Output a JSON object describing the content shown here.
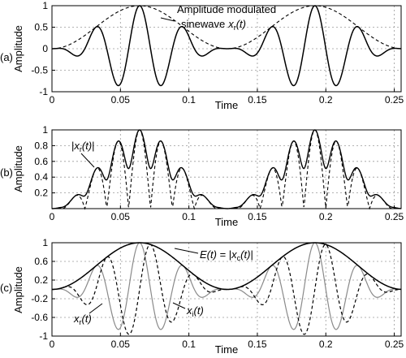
{
  "chart_data": [
    {
      "type": "line",
      "panel_label": "(a)",
      "xlabel": "Time",
      "ylabel": "Amplitude",
      "xlim": [
        0,
        0.255
      ],
      "ylim": [
        -1,
        1
      ],
      "xticks": [
        0,
        0.05,
        0.1,
        0.15,
        0.2,
        0.25
      ],
      "xtick_labels": [
        "0",
        "0.05",
        "0.1",
        "0.15",
        "0.2",
        "0.25"
      ],
      "yticks": [
        -1,
        -0.5,
        0,
        0.5,
        1
      ],
      "ytick_labels": [
        "-1",
        "-0.5",
        "0",
        "0.5",
        "1"
      ],
      "grid": true,
      "signal": {
        "envelope_period": 0.128,
        "envelope_peaks": [
          0.064,
          0.192
        ],
        "carrier_period": 0.032
      },
      "series": [
        {
          "key": "xr",
          "values_desc": "envelope x carrier",
          "points": [
            [
              0,
              0
            ],
            [
              0.016,
              -0.15
            ],
            [
              0.032,
              0.55
            ],
            [
              0.048,
              -0.92
            ],
            [
              0.064,
              1.0
            ],
            [
              0.08,
              -0.92
            ],
            [
              0.096,
              0.55
            ],
            [
              0.112,
              -0.15
            ],
            [
              0.128,
              0
            ],
            [
              0.144,
              -0.15
            ],
            [
              0.16,
              0.55
            ],
            [
              0.176,
              -0.92
            ],
            [
              0.192,
              1.0
            ],
            [
              0.208,
              -0.92
            ],
            [
              0.224,
              0.55
            ],
            [
              0.24,
              -0.15
            ],
            [
              0.255,
              0.01
            ]
          ]
        },
        {
          "key": "env",
          "points": [
            [
              0,
              0
            ],
            [
              0.032,
              0.5
            ],
            [
              0.064,
              1.0
            ],
            [
              0.096,
              0.5
            ],
            [
              0.128,
              0
            ],
            [
              0.16,
              0.5
            ],
            [
              0.192,
              1.0
            ],
            [
              0.224,
              0.5
            ],
            [
              0.255,
              0.01
            ]
          ]
        }
      ],
      "annotations": [
        {
          "line1": "Amplitude modulated",
          "line2_prefix": "sinewave",
          "symbol": "x",
          "subscript": "r",
          "arg": "(t)"
        }
      ]
    },
    {
      "type": "line",
      "panel_label": "(b)",
      "xlabel": "Time",
      "ylabel": "Amplitude",
      "xlim": [
        0,
        0.255
      ],
      "ylim": [
        0,
        1
      ],
      "xticks": [
        0,
        0.05,
        0.1,
        0.15,
        0.2,
        0.25
      ],
      "xtick_labels": [
        "0",
        "0.05",
        "0.1",
        "0.15",
        "0.2",
        "0.25"
      ],
      "yticks": [
        0.2,
        0.4,
        0.6,
        0.8,
        1
      ],
      "ytick_labels": [
        "0.2",
        "0.4",
        "0.6",
        "0.8",
        "1"
      ],
      "grid": true,
      "series": [
        {
          "key": "abs_xr",
          "points": [
            [
              0,
              0
            ],
            [
              0.016,
              0.15
            ],
            [
              0.032,
              0.55
            ],
            [
              0.048,
              0.92
            ],
            [
              0.064,
              1.0
            ],
            [
              0.08,
              0.92
            ],
            [
              0.096,
              0.55
            ],
            [
              0.112,
              0.15
            ],
            [
              0.128,
              0
            ],
            [
              0.144,
              0.15
            ],
            [
              0.16,
              0.55
            ],
            [
              0.176,
              0.92
            ],
            [
              0.192,
              1.0
            ],
            [
              0.208,
              0.92
            ],
            [
              0.224,
              0.55
            ],
            [
              0.24,
              0.15
            ],
            [
              0.255,
              0.01
            ]
          ]
        },
        {
          "key": "hilbert_mag",
          "points": [
            [
              0,
              0
            ],
            [
              0.032,
              0.6
            ],
            [
              0.048,
              0.9
            ],
            [
              0.064,
              1.0
            ],
            [
              0.08,
              0.86
            ],
            [
              0.096,
              0.55
            ],
            [
              0.128,
              0
            ],
            [
              0.16,
              0.6
            ],
            [
              0.176,
              0.9
            ],
            [
              0.192,
              1.0
            ],
            [
              0.208,
              0.86
            ],
            [
              0.224,
              0.55
            ],
            [
              0.255,
              0.01
            ]
          ]
        }
      ],
      "annotations": [
        {
          "symbol": "x",
          "subscript": "r",
          "arg": "(t)",
          "prefix": "|",
          "suffix": "|"
        }
      ]
    },
    {
      "type": "line",
      "panel_label": "(c)",
      "xlabel": "Time",
      "ylabel": "Amplitude",
      "xlim": [
        0,
        0.255
      ],
      "ylim": [
        -1,
        1
      ],
      "xticks": [
        0,
        0.05,
        0.1,
        0.15,
        0.2,
        0.25
      ],
      "xtick_labels": [
        "0",
        "0.05",
        "0.1",
        "0.15",
        "0.2",
        "0.25"
      ],
      "yticks": [
        -1,
        -0.6,
        -0.2,
        0.2,
        0.6,
        1
      ],
      "ytick_labels": [
        "-1",
        "-0.6",
        "-0.2",
        "0.2",
        "0.6",
        "1"
      ],
      "grid": true,
      "series": [
        {
          "key": "envelope",
          "points": [
            [
              0,
              0
            ],
            [
              0.032,
              0.5
            ],
            [
              0.064,
              1.0
            ],
            [
              0.096,
              0.5
            ],
            [
              0.128,
              0
            ],
            [
              0.16,
              0.5
            ],
            [
              0.192,
              1.0
            ],
            [
              0.224,
              0.5
            ],
            [
              0.255,
              0.01
            ]
          ]
        },
        {
          "key": "xr_gray",
          "points": [
            [
              0,
              0
            ],
            [
              0.016,
              -0.15
            ],
            [
              0.032,
              0.55
            ],
            [
              0.048,
              -0.92
            ],
            [
              0.064,
              1.0
            ],
            [
              0.08,
              -0.92
            ],
            [
              0.096,
              0.55
            ],
            [
              0.112,
              -0.15
            ],
            [
              0.128,
              0
            ],
            [
              0.144,
              -0.15
            ],
            [
              0.16,
              0.55
            ],
            [
              0.176,
              -0.92
            ],
            [
              0.192,
              1.0
            ],
            [
              0.208,
              -0.92
            ],
            [
              0.224,
              0.55
            ],
            [
              0.24,
              -0.15
            ],
            [
              0.255,
              0.01
            ]
          ]
        },
        {
          "key": "xi_dashed",
          "points": [
            [
              0,
              0
            ],
            [
              0.024,
              0.35
            ],
            [
              0.04,
              -0.78
            ],
            [
              0.056,
              0.98
            ],
            [
              0.072,
              -0.98
            ],
            [
              0.088,
              0.78
            ],
            [
              0.104,
              -0.35
            ],
            [
              0.128,
              0
            ],
            [
              0.152,
              0.35
            ],
            [
              0.168,
              -0.78
            ],
            [
              0.184,
              0.98
            ],
            [
              0.2,
              -0.98
            ],
            [
              0.216,
              0.78
            ],
            [
              0.232,
              -0.35
            ],
            [
              0.255,
              0.0
            ]
          ]
        }
      ],
      "annotations": [
        {
          "prefix": "E",
          "arg": "(t)",
          "eq": " = |",
          "symbol": "x",
          "subscript": "c",
          "arg2": "(t)",
          "suffix": "|"
        },
        {
          "symbol": "x",
          "subscript": "r",
          "arg": "(t)"
        },
        {
          "symbol": "x",
          "subscript": "i",
          "arg": "(t)"
        }
      ]
    }
  ]
}
